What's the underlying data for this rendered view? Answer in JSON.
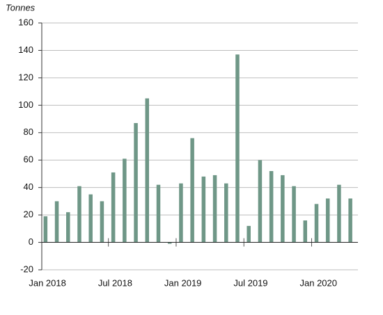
{
  "chart_data": {
    "type": "bar",
    "y_label": "Tonnes",
    "categories": [
      "Jan 2018",
      null,
      null,
      null,
      null,
      null,
      "Jul 2018",
      null,
      null,
      null,
      null,
      null,
      "Jan 2019",
      null,
      null,
      null,
      null,
      null,
      "Jul 2019",
      null,
      null,
      null,
      null,
      null,
      "Jan 2020",
      null,
      null,
      null
    ],
    "values": [
      19,
      30,
      22,
      41,
      35,
      30,
      51,
      61,
      87,
      105,
      42,
      -1,
      43,
      76,
      48,
      49,
      43,
      137,
      12,
      60,
      52,
      49,
      41,
      16,
      28,
      32,
      42,
      32
    ],
    "color": "#6f9787",
    "ylim": [
      -20,
      160
    ],
    "yticks": [
      -20,
      0,
      20,
      40,
      60,
      80,
      100,
      120,
      140,
      160
    ],
    "grid": true
  }
}
